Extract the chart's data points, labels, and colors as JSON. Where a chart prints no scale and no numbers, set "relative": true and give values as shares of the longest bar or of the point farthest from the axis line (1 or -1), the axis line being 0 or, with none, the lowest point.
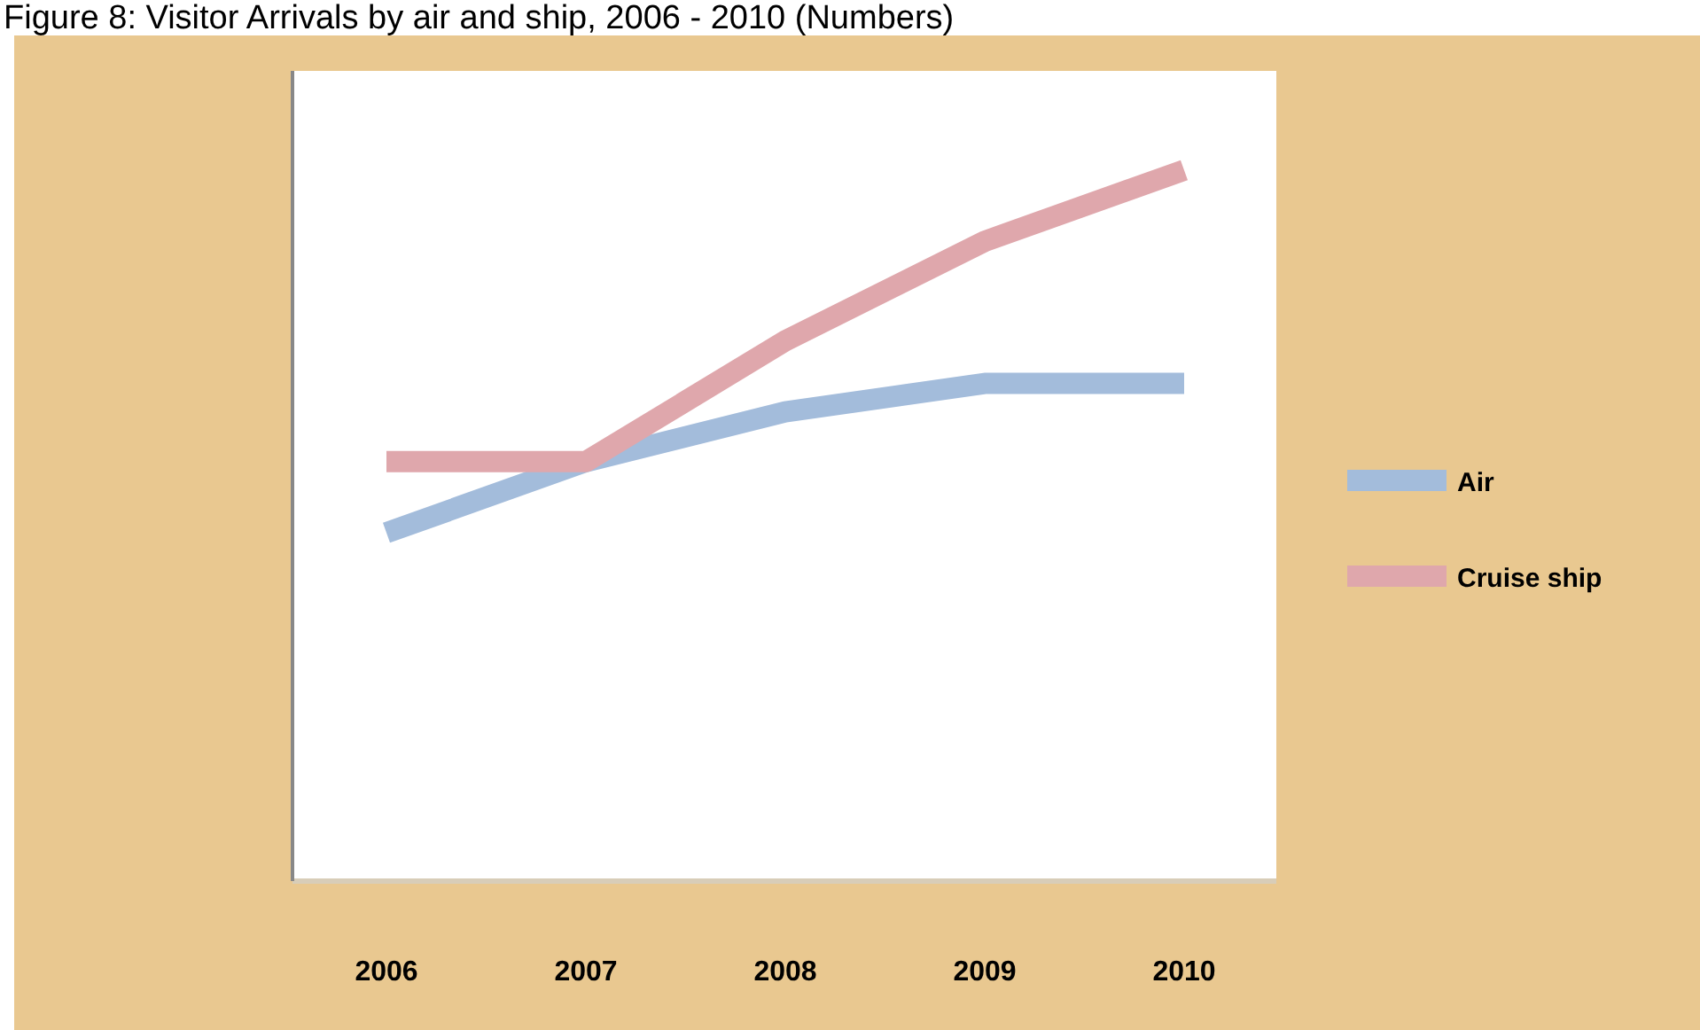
{
  "chart_data": {
    "type": "line",
    "title": "Figure 8: Visitor Arrivals by air and ship, 2006 - 2010 (Numbers)",
    "categories": [
      "2006",
      "2007",
      "2008",
      "2009",
      "2010"
    ],
    "relative": true,
    "legend": "right",
    "series": [
      {
        "name": "Air",
        "color": "#a3bcdb",
        "values": [
          0.49,
          0.59,
          0.66,
          0.7,
          0.7
        ]
      },
      {
        "name": "Cruise ship",
        "color": "#dfa7ac",
        "values": [
          0.59,
          0.59,
          0.76,
          0.9,
          1
        ]
      }
    ]
  }
}
